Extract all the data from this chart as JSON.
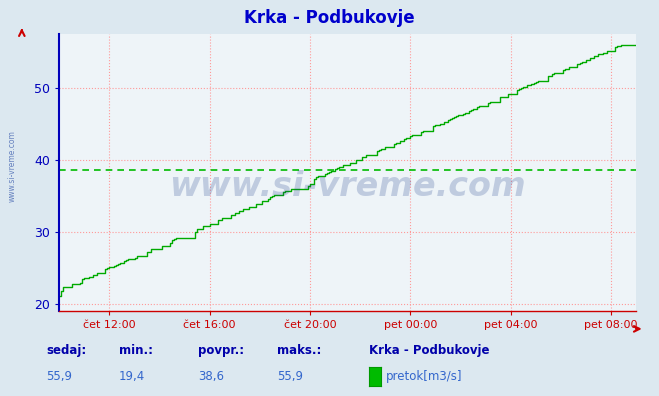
{
  "title": "Krka - Podbukovje",
  "title_color": "#0000cc",
  "title_fontsize": 12,
  "bg_color": "#dce8f0",
  "plot_bg_color": "#eef4f8",
  "line_color": "#00aa00",
  "avg_line_color": "#00bb00",
  "avg_value": 38.6,
  "y_min": 19.0,
  "y_max": 57.5,
  "y_ticks": [
    20,
    30,
    40,
    50
  ],
  "x_tick_labels": [
    "čet 12:00",
    "čet 16:00",
    "čet 20:00",
    "pet 00:00",
    "pet 04:00",
    "pet 08:00"
  ],
  "x_tick_positions": [
    120,
    360,
    600,
    840,
    1080,
    1320
  ],
  "x_min": 0,
  "x_max": 1380,
  "grid_color": "#ff9999",
  "left_spine_color": "#0000bb",
  "bottom_spine_color": "#cc0000",
  "tick_color": "#0000bb",
  "sedaj_label": "sedaj:",
  "min_label": "min.:",
  "povpr_label": "povpr.:",
  "maks_label": "maks.:",
  "sedaj": "55,9",
  "min_val": "19,4",
  "povpr": "38,6",
  "maks": "55,9",
  "legend_label": "pretok[m3/s]",
  "legend_station": "Krka - Podbukovje",
  "watermark": "www.si-vreme.com",
  "side_label": "www.si-vreme.com"
}
